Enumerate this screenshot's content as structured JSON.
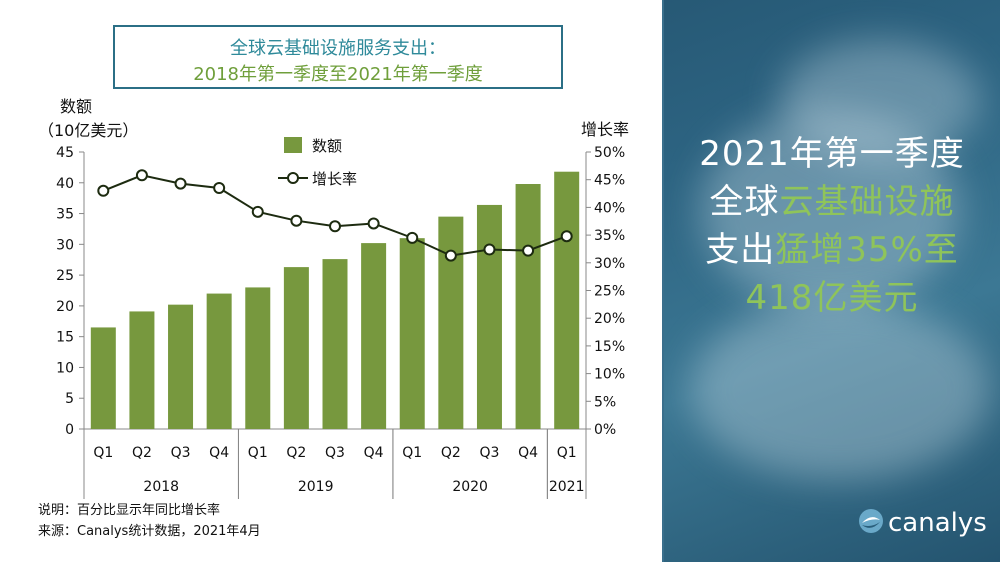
{
  "title": {
    "line1": "全球云基础设施服务支出：",
    "line2": "2018年第一季度至2021年第一季度"
  },
  "left_axis_label": {
    "line1": "数额",
    "line2": "（10亿美元）"
  },
  "right_axis_label": "增长率",
  "notes": {
    "line1": "说明：百分比显示年同比增长率",
    "line2": "来源：Canalys统计数据，2021年4月"
  },
  "headline": {
    "p1": "2021年第一季度",
    "p2": "全球",
    "p3": "云基础设施",
    "p4": "支出",
    "p5": "猛增35%至",
    "p6": "418亿美元"
  },
  "logo": {
    "text": "canalys"
  },
  "colors": {
    "bar": "#77983e",
    "line": "#1d2b10",
    "title_teal": "#2f8a9a",
    "title_green": "#6f9f3b",
    "highlight_green": "#8fc45a"
  },
  "chart_data": {
    "type": "bar+line",
    "categories": [
      "Q1",
      "Q2",
      "Q3",
      "Q4",
      "Q1",
      "Q2",
      "Q3",
      "Q4",
      "Q1",
      "Q2",
      "Q3",
      "Q4",
      "Q1"
    ],
    "years": [
      {
        "label": "2018",
        "from": 0,
        "to": 3
      },
      {
        "label": "2019",
        "from": 4,
        "to": 7
      },
      {
        "label": "2020",
        "from": 8,
        "to": 11
      },
      {
        "label": "2021",
        "from": 12,
        "to": 12
      }
    ],
    "series": [
      {
        "name": "数额",
        "kind": "bar",
        "axis": "left",
        "values": [
          16.5,
          19.1,
          20.2,
          22.0,
          23.0,
          26.3,
          27.6,
          30.2,
          31.0,
          34.5,
          36.4,
          39.8,
          41.8
        ]
      },
      {
        "name": "增长率",
        "kind": "line",
        "axis": "right",
        "values": [
          43.0,
          45.8,
          44.3,
          43.5,
          39.2,
          37.6,
          36.6,
          37.1,
          34.5,
          31.3,
          32.4,
          32.2,
          34.8
        ]
      }
    ],
    "ylim_left": [
      0,
      45
    ],
    "yticks_left": [
      "0",
      "5",
      "10",
      "15",
      "20",
      "25",
      "30",
      "35",
      "40",
      "45"
    ],
    "ylim_right": [
      0,
      50
    ],
    "yticks_right": [
      "0%",
      "5%",
      "10%",
      "15%",
      "20%",
      "25%",
      "30%",
      "35%",
      "40%",
      "45%",
      "50%"
    ],
    "legend_position": "top-center",
    "grid": false
  }
}
